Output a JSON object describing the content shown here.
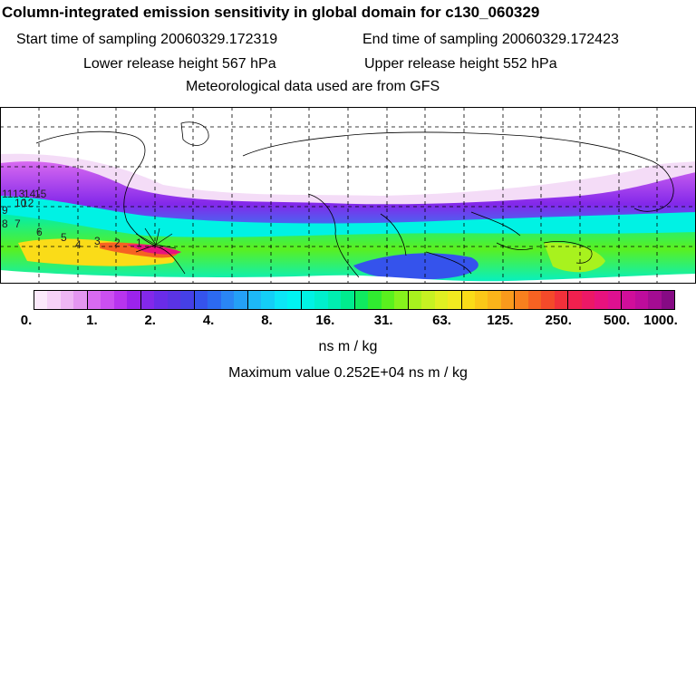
{
  "header": {
    "title": "Column-integrated emission sensitivity in global domain for c130_060329",
    "start_time": "Start time of sampling 20060329.172319",
    "end_time": "End time of sampling 20060329.172423",
    "lower_release": "Lower release height  567 hPa",
    "upper_release": "Upper release height  552 hPa",
    "met_data": "Meteorological data used are from GFS"
  },
  "map": {
    "track_labels": [
      "1",
      "2",
      "3",
      "4",
      "5",
      "6",
      "7",
      "8",
      "9",
      "10",
      "11",
      "12",
      "13",
      "14",
      "15"
    ]
  },
  "legend": {
    "ticks": [
      "0.",
      "1.",
      "2.",
      "4.",
      "8.",
      "16.",
      "31.",
      "63.",
      "125.",
      "250.",
      "500.",
      "1000."
    ],
    "colors": [
      "#fbe9fb",
      "#f6d2f8",
      "#eeb6f4",
      "#e496f1",
      "#d86af0",
      "#cb4ff0",
      "#b834ee",
      "#9c23ec",
      "#8328ea",
      "#6a2ce8",
      "#5a33e4",
      "#4540e6",
      "#3553ec",
      "#2c6af0",
      "#2a86f4",
      "#24a0f6",
      "#1db8f6",
      "#14cef6",
      "#0ce6f6",
      "#00f4f2",
      "#00f2e4",
      "#00f0cc",
      "#00eeb0",
      "#00ec8e",
      "#10ea60",
      "#30ec30",
      "#5af01e",
      "#86f21c",
      "#a8f21e",
      "#c6f222",
      "#e0f022",
      "#f2ea20",
      "#fadc18",
      "#fbc818",
      "#fbb41a",
      "#fa9a1c",
      "#f8801e",
      "#f66222",
      "#f44a2a",
      "#f2303a",
      "#f0204e",
      "#ec1866",
      "#e8127e",
      "#de1090",
      "#d00e9a",
      "#be0c9c",
      "#a40c92",
      "#860a84"
    ],
    "units": "ns m / kg",
    "max_value": "Maximum value  0.252E+04 ns m / kg"
  }
}
